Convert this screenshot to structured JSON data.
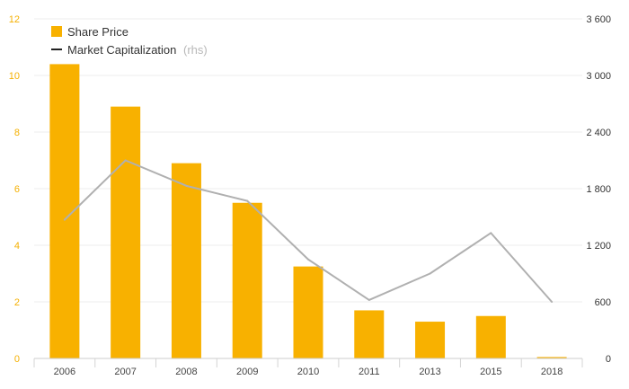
{
  "chart_data": {
    "type": "bar+line",
    "categories": [
      "2006",
      "2007",
      "2008",
      "2009",
      "2010",
      "2011",
      "2013",
      "2015",
      "2018"
    ],
    "series": [
      {
        "name": "Share Price",
        "type": "bar",
        "axis": "left",
        "color": "#f8b100",
        "values": [
          10.4,
          8.9,
          6.9,
          5.5,
          3.25,
          1.7,
          1.3,
          1.5,
          0.05
        ]
      },
      {
        "name": "Market Capitalization",
        "type": "line",
        "axis": "right",
        "color": "#b0b0b0",
        "values": [
          1470,
          2100,
          1830,
          1670,
          1050,
          620,
          900,
          1330,
          600
        ]
      }
    ],
    "legend": {
      "items": [
        {
          "label": "Share Price",
          "suffix": ""
        },
        {
          "label": "Market Capitalization",
          "suffix": "(rhs)"
        }
      ],
      "placement": "top-left"
    },
    "left_axis": {
      "ylim": [
        0,
        12
      ],
      "ticks": [
        "0",
        "2",
        "4",
        "6",
        "8",
        "10",
        "12"
      ],
      "color": "#f5b000"
    },
    "right_axis": {
      "ylim": [
        0,
        3600
      ],
      "ticks": [
        "0",
        "600",
        "1 200",
        "1 800",
        "2 400",
        "3 000",
        "3 600"
      ]
    },
    "grid": "horizontal",
    "title": "",
    "xlabel": "",
    "ylabel": ""
  }
}
